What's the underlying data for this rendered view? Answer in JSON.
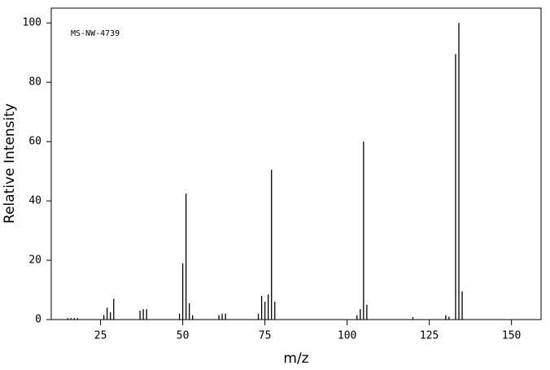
{
  "chart_data": {
    "type": "stem",
    "annotation": "MS-NW-4739",
    "xlabel": "m/z",
    "ylabel": "Relative Intensity",
    "x": [
      15,
      16,
      17,
      18,
      26,
      27,
      28,
      29,
      37,
      38,
      39,
      49,
      50,
      51,
      52,
      53,
      61,
      62,
      63,
      73,
      74,
      75,
      76,
      77,
      78,
      103,
      104,
      105,
      106,
      120,
      130,
      131,
      133,
      134,
      135
    ],
    "values": [
      0.5,
      0.5,
      0.5,
      0.5,
      1.5,
      4,
      2.5,
      7,
      3,
      3.5,
      3.5,
      2,
      19,
      42.5,
      5.5,
      1.5,
      1.5,
      2,
      2,
      2,
      8,
      6,
      8.5,
      50.5,
      6,
      1.5,
      3.5,
      60,
      5,
      0.8,
      1.5,
      1,
      89.5,
      100,
      9.5
    ],
    "color": "#000000",
    "xlim": [
      10,
      159
    ],
    "xticks": [
      25,
      50,
      75,
      100,
      125,
      150
    ],
    "ylim": [
      0,
      105
    ],
    "yticks": [
      0,
      20,
      40,
      60,
      80,
      100
    ]
  }
}
